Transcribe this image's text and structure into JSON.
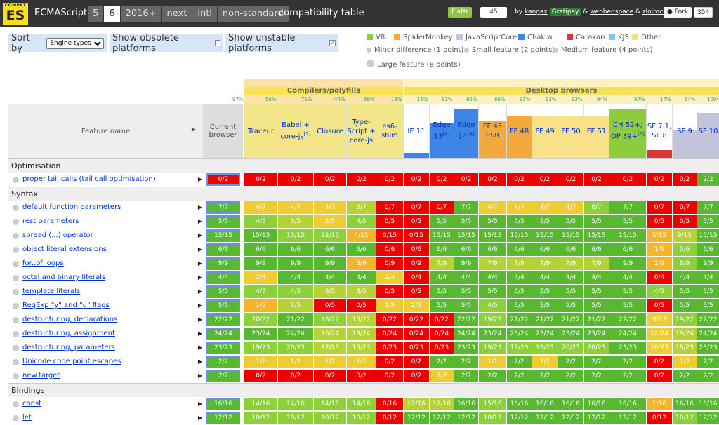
{
  "topbar": {
    "logo_small": "COMPAT",
    "logo_big": "ES",
    "brand": "ECMAScript",
    "versions": [
      "5",
      "6",
      "2016+",
      "next",
      "intl",
      "non-standard"
    ],
    "active_version": "6",
    "title": "compatibility table",
    "flattr_label": "Flattr",
    "flattr_count": "45",
    "by": "by",
    "author1": "kangax",
    "gratipay": "Gratipay",
    "amp1": "&",
    "author2": "webbedspace",
    "amp2": "&",
    "author3": "zloirock",
    "fork_label": "Fork",
    "fork_count": "354"
  },
  "controls": {
    "sort_label": "Sort by",
    "sort_value": "Engine types",
    "obsolete_label": "Show obsolete platforms",
    "obsolete_checked": false,
    "unstable_label": "Show unstable platforms",
    "unstable_checked": true
  },
  "legend": {
    "engines": [
      {
        "name": "V8",
        "color": "#8ecb3d"
      },
      {
        "name": "SpiderMonkey",
        "color": "#f4a93c"
      },
      {
        "name": "JavaScriptCore",
        "color": "#c3c3dc"
      },
      {
        "name": "Chakra",
        "color": "#3e86e5"
      },
      {
        "name": "Carakan",
        "color": "#d93636"
      },
      {
        "name": "KJS",
        "color": "#7cc6f2"
      },
      {
        "name": "Other",
        "color": "#f3e27a"
      }
    ],
    "weights": [
      "Minor difference (1 point)",
      "Small feature (2 points)",
      "Medium feature (4 points)",
      "Large feature (8 points)"
    ]
  },
  "table": {
    "groups": [
      {
        "label": "Compilers/polyfills"
      },
      {
        "label": "Desktop browsers"
      }
    ],
    "feature_header": "Feature name",
    "current_header": "Current browser",
    "current_pct": "97%",
    "platforms": [
      {
        "name": "Traceur",
        "pct": "56%",
        "bg": "#f3e58a"
      },
      {
        "name": "Babel + core-js",
        "sup": "[2]",
        "pct": "71%",
        "bg": "#f3e58a"
      },
      {
        "name": "Closure",
        "pct": "44%",
        "bg": "#f3e58a"
      },
      {
        "name": "Type-Script + core-js",
        "pct": "59%",
        "bg": "#f3e58a"
      },
      {
        "name": "es6-shim",
        "pct": "18%",
        "bg": "#f3e58a"
      },
      {
        "name": "IE 11",
        "pct": "11%",
        "bg": "#fff"
      },
      {
        "name": "Edge 13",
        "sup": "[4]",
        "pct": "83%",
        "bg": "#fff"
      },
      {
        "name": "Edge 14",
        "sup": "[4]",
        "pct": "95%",
        "bg": "#fff"
      },
      {
        "name": "FF 45 ESR",
        "pct": "86%",
        "bg": "#fff"
      },
      {
        "name": "FF 48",
        "pct": "91%",
        "bg": "#fff"
      },
      {
        "name": "FF 49",
        "pct": "92%",
        "bg": "#fff"
      },
      {
        "name": "FF 50",
        "pct": "92%",
        "bg": "#fff"
      },
      {
        "name": "FF 51",
        "pct": "94%",
        "bg": "#fff"
      },
      {
        "name": "CH 52+, OP 39+",
        "sup": "[1]",
        "pct": "97%",
        "bg": "#fff"
      },
      {
        "name": "SF 7.1, SF 8",
        "pct": "17%",
        "bg": "#fff"
      },
      {
        "name": "SF 9",
        "pct": "54%",
        "bg": "#fff"
      },
      {
        "name": "SF 10",
        "pct": "100%",
        "bg": "#fff"
      }
    ],
    "sections": [
      {
        "title": "Optimisation",
        "rows": [
          {
            "name": "proper tail calls (tail call optimisation)",
            "cur": "0/2",
            "cells": [
              "0/2",
              "0/2",
              "0/2",
              "0/2",
              "0/2",
              "0/2",
              "0/2",
              "0/2",
              "0/2",
              "0/2",
              "0/2",
              "0/2",
              "0/2",
              "0/2",
              "0/2",
              "0/2",
              "2/2"
            ]
          }
        ]
      },
      {
        "title": "Syntax",
        "rows": [
          {
            "name": "default function parameters",
            "cur": "7/7",
            "cells": [
              "4/7",
              "4/7",
              "4/7",
              "5/7",
              "0/7",
              "0/7",
              "0/7",
              "7/7",
              "4/7",
              "4/7",
              "4/7",
              "4/7",
              "6/7",
              "7/7",
              "0/7",
              "0/7",
              "7/7"
            ]
          },
          {
            "name": "rest parameters",
            "cur": "5/5",
            "cells": [
              "4/5",
              "3/5",
              "2/5",
              "4/5",
              "0/5",
              "0/5",
              "5/5",
              "5/5",
              "5/5",
              "5/5",
              "5/5",
              "5/5",
              "5/5",
              "5/5",
              "0/5",
              "0/5",
              "5/5"
            ]
          },
          {
            "name": "spread (...) operator",
            "cur": "15/15",
            "cells": [
              "15/15",
              "13/15",
              "12/15",
              "4/15",
              "0/15",
              "0/15",
              "15/15",
              "15/15",
              "15/15",
              "15/15",
              "15/15",
              "15/15",
              "15/15",
              "15/15",
              "5/15",
              "9/15",
              "15/15"
            ]
          },
          {
            "name": "object literal extensions",
            "cur": "6/6",
            "cells": [
              "6/6",
              "6/6",
              "6/6",
              "6/6",
              "0/6",
              "0/6",
              "6/6",
              "6/6",
              "6/6",
              "6/6",
              "6/6",
              "6/6",
              "6/6",
              "6/6",
              "1/6",
              "5/6",
              "6/6"
            ]
          },
          {
            "name": "for..of loops",
            "cur": "9/9",
            "cells": [
              "9/9",
              "9/9",
              "9/9",
              "3/9",
              "0/9",
              "0/9",
              "7/9",
              "9/9",
              "7/9",
              "7/9",
              "7/9",
              "7/9",
              "7/9",
              "9/9",
              "2/9",
              "8/9",
              "9/9"
            ]
          },
          {
            "name": "octal and binary literals",
            "cur": "4/4",
            "cells": [
              "2/4",
              "4/4",
              "4/4",
              "4/4",
              "2/4",
              "0/4",
              "4/4",
              "4/4",
              "4/4",
              "4/4",
              "4/4",
              "4/4",
              "4/4",
              "4/4",
              "0/4",
              "4/4",
              "4/4"
            ]
          },
          {
            "name": "template literals",
            "cur": "5/5",
            "cells": [
              "4/5",
              "4/5",
              "3/5",
              "3/5",
              "0/5",
              "0/5",
              "5/5",
              "5/5",
              "5/5",
              "5/5",
              "5/5",
              "5/5",
              "5/5",
              "5/5",
              "4/5",
              "5/5",
              "5/5"
            ]
          },
          {
            "name": "RegExp \"y\" and \"u\" flags",
            "cur": "5/5",
            "cells": [
              "1/5",
              "3/5",
              "0/5",
              "0/5",
              "2/5",
              "2/5",
              "5/5",
              "5/5",
              "4/5",
              "5/5",
              "5/5",
              "5/5",
              "5/5",
              "5/5",
              "0/5",
              "5/5",
              "5/5"
            ]
          },
          {
            "name": "destructuring, declarations",
            "cur": "22/22",
            "cells": [
              "20/22",
              "21/22",
              "18/22",
              "15/22",
              "0/22",
              "0/22",
              "0/22",
              "22/22",
              "19/22",
              "21/22",
              "21/22",
              "21/22",
              "21/22",
              "22/22",
              "9/22",
              "19/22",
              "22/22"
            ]
          },
          {
            "name": "destructuring, assignment",
            "cur": "24/24",
            "cells": [
              "23/24",
              "24/24",
              "16/24",
              "19/24",
              "0/24",
              "0/24",
              "0/24",
              "24/24",
              "23/24",
              "23/24",
              "23/24",
              "23/24",
              "23/24",
              "24/24",
              "12/24",
              "19/24",
              "24/24"
            ]
          },
          {
            "name": "destructuring, parameters",
            "cur": "23/23",
            "cells": [
              "19/23",
              "20/23",
              "17/23",
              "15/23",
              "0/23",
              "0/23",
              "0/23",
              "23/23",
              "19/23",
              "19/23",
              "19/23",
              "20/23",
              "20/23",
              "23/23",
              "10/23",
              "18/23",
              "23/23"
            ]
          },
          {
            "name": "Unicode code point escapes",
            "cur": "2/2",
            "cells": [
              "1/2",
              "1/2",
              "1/2",
              "1/2",
              "0/2",
              "0/2",
              "2/2",
              "2/2",
              "1/2",
              "2/2",
              "1/2",
              "2/2",
              "2/2",
              "2/2",
              "0/2",
              "1/2",
              "2/2"
            ]
          },
          {
            "name": "new.target",
            "cur": "2/2",
            "cells": [
              "0/2",
              "0/2",
              "0/2",
              "0/2",
              "0/2",
              "0/2",
              "1/2",
              "2/2",
              "2/2",
              "2/2",
              "2/2",
              "2/2",
              "2/2",
              "2/2",
              "0/2",
              "2/2",
              "2/2"
            ]
          }
        ]
      },
      {
        "title": "Bindings",
        "rows": [
          {
            "name": "const",
            "cur": "16/16",
            "cells": [
              "14/16",
              "14/16",
              "14/16",
              "14/16",
              "0/16",
              "12/16",
              "12/16",
              "16/16",
              "15/16",
              "16/16",
              "16/16",
              "16/16",
              "16/16",
              "16/16",
              "1/16",
              "16/16",
              "16/16"
            ]
          },
          {
            "name": "let",
            "cur": "12/12",
            "cells": [
              "10/12",
              "10/12",
              "10/12",
              "10/12",
              "0/12",
              "12/12",
              "12/12",
              "12/12",
              "10/12",
              "12/12",
              "12/12",
              "12/12",
              "12/12",
              "12/12",
              "0/12",
              "10/12",
              "12/12"
            ]
          }
        ]
      }
    ]
  }
}
